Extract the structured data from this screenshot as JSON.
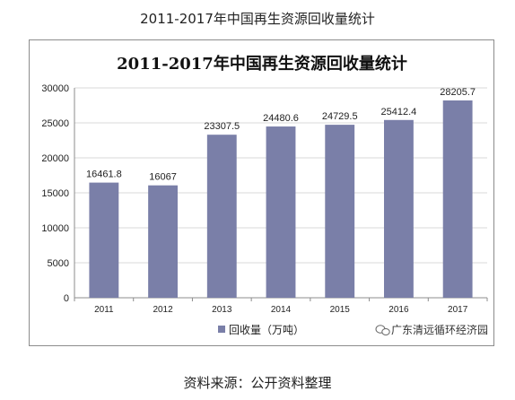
{
  "caption_top": "2011-2017年中国再生资源回收量统计",
  "caption_bottom": "资料来源：公开资料整理",
  "watermark": "广东清远循环经济园",
  "colors": {
    "bar": "#7a7fa8",
    "grid": "#d9d9d9",
    "axis": "#8c8c8c"
  },
  "chart_data": {
    "type": "bar",
    "title": "2011-2017年中国再生资源回收量统计",
    "categories": [
      "2011",
      "2012",
      "2013",
      "2014",
      "2015",
      "2016",
      "2017"
    ],
    "series": [
      {
        "name": "回收量（万吨）",
        "values": [
          16461.8,
          16067,
          23307.5,
          24480.6,
          24729.5,
          25412.4,
          28205.7
        ]
      }
    ],
    "data_labels": [
      "16461.8",
      "16067",
      "23307.5",
      "24480.6",
      "24729.5",
      "25412.4",
      "28205.7"
    ],
    "yticks": [
      "0",
      "5000",
      "10000",
      "15000",
      "20000",
      "25000",
      "30000"
    ],
    "ylim": [
      0,
      30000
    ],
    "xlabel": "",
    "ylabel": "",
    "grid": true,
    "legend_position": "bottom-left"
  }
}
